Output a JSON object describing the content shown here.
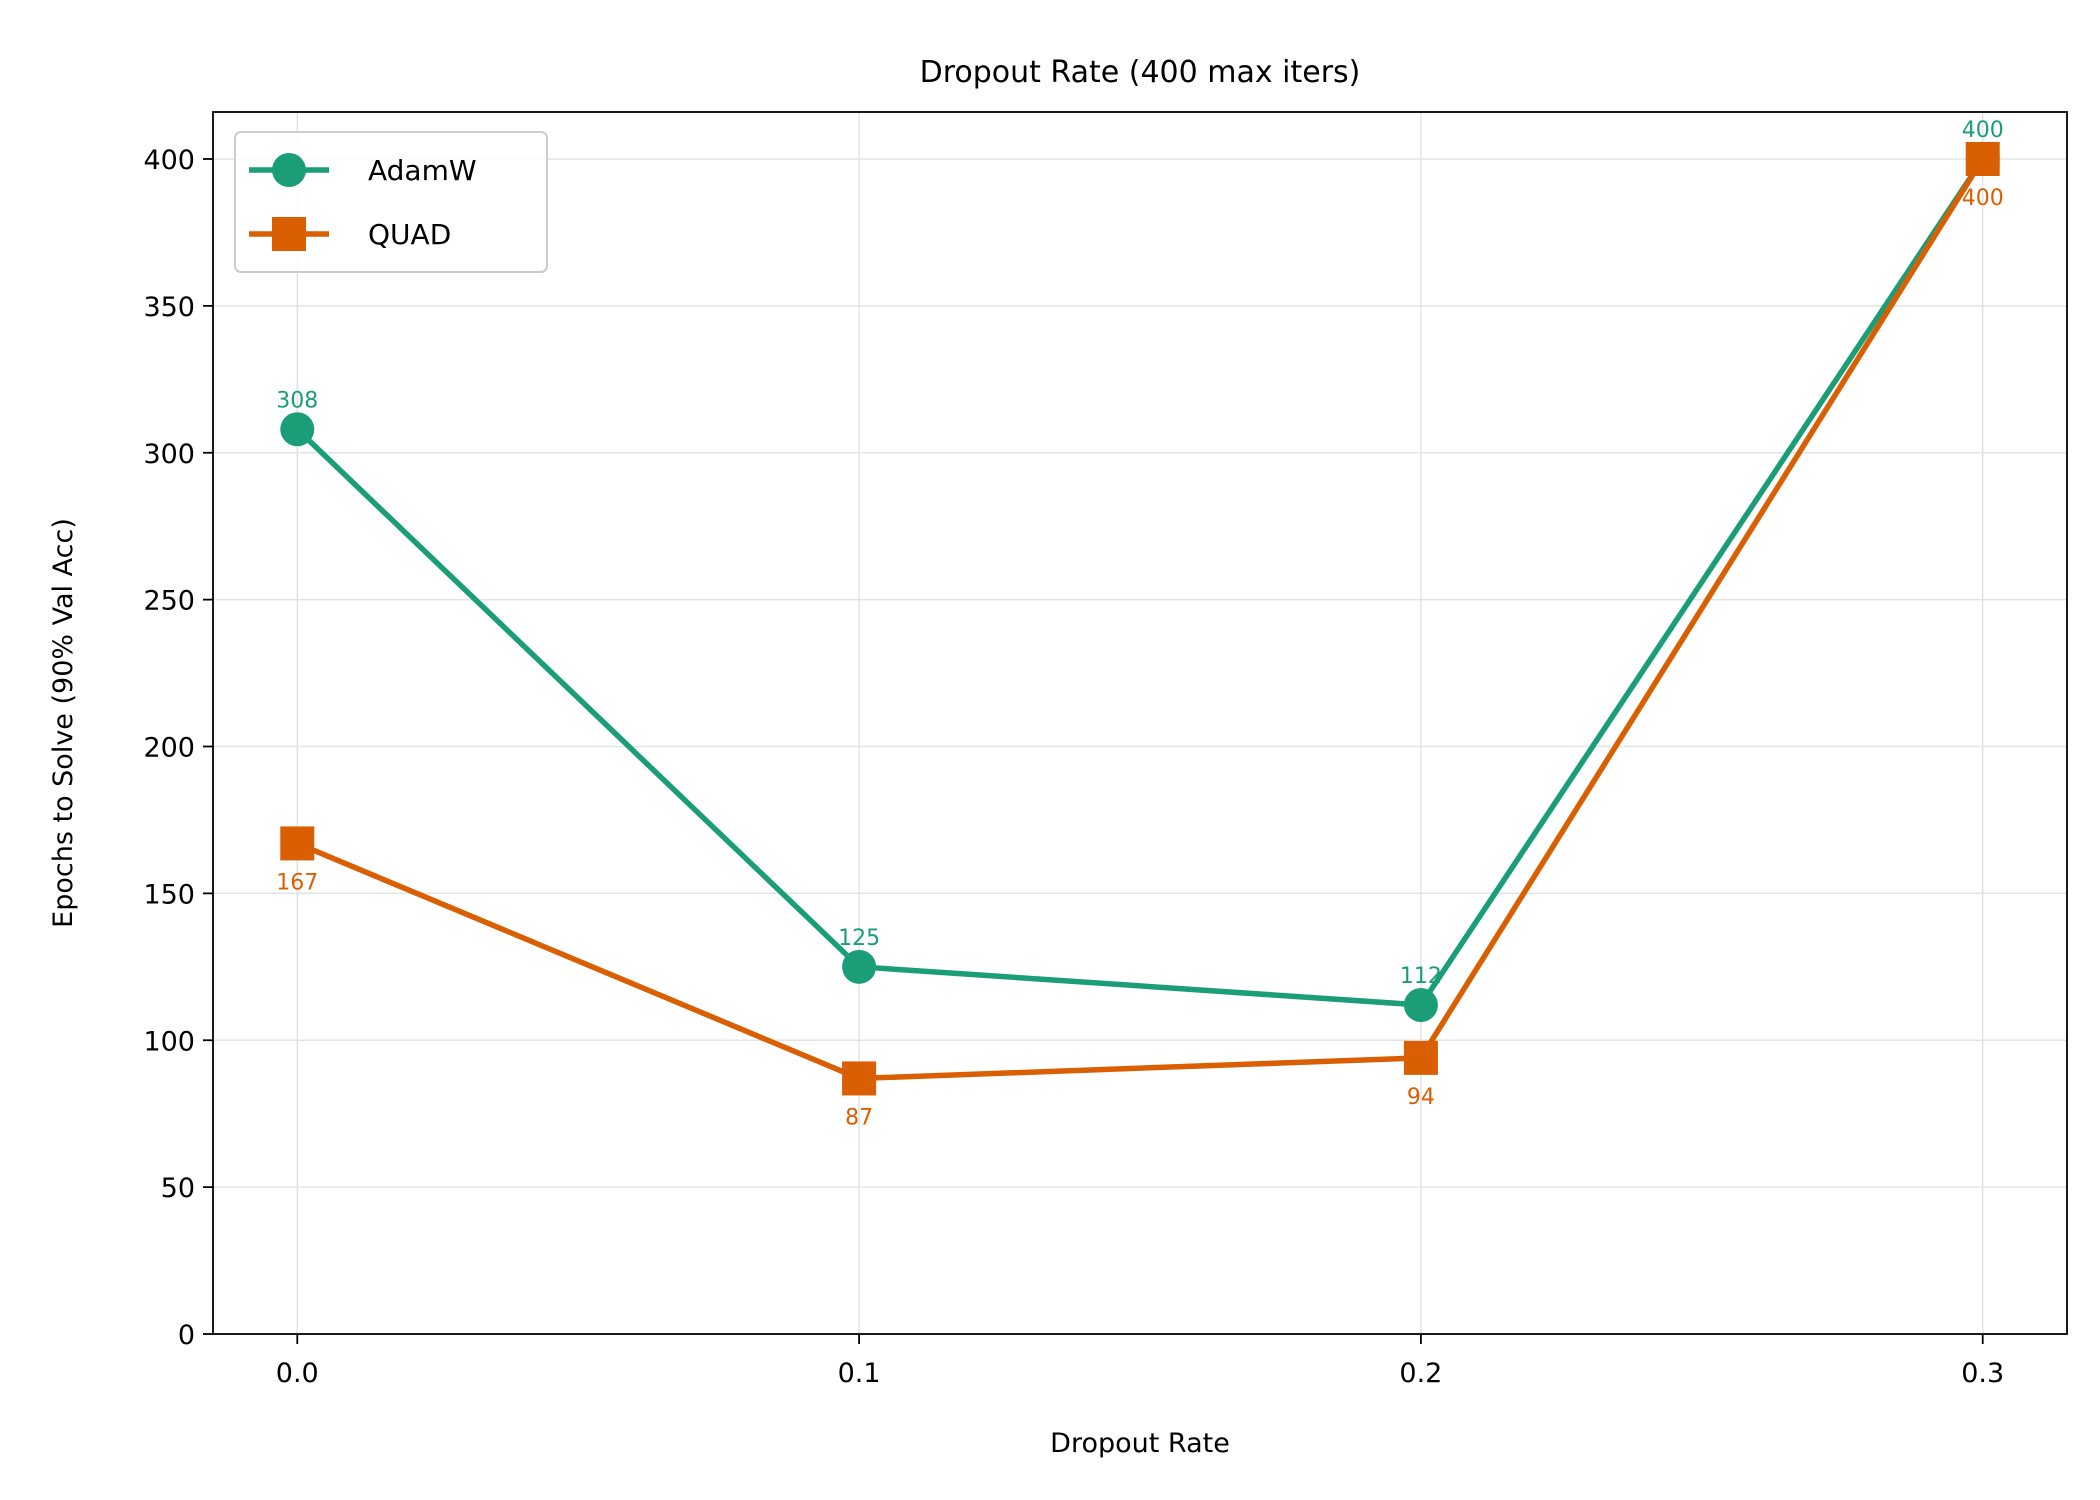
{
  "chart_data": {
    "type": "line",
    "title": "Dropout Rate (400 max iters)",
    "xlabel": "Dropout Rate",
    "ylabel": "Epochs to Solve (90% Val Acc)",
    "x": [
      0.0,
      0.1,
      0.2,
      0.3
    ],
    "x_tick_labels": [
      "0.0",
      "0.1",
      "0.2",
      "0.3"
    ],
    "y_ticks": [
      0,
      50,
      100,
      150,
      200,
      250,
      300,
      350,
      400
    ],
    "y_tick_labels": [
      "0",
      "50",
      "100",
      "150",
      "200",
      "250",
      "300",
      "350",
      "400"
    ],
    "xlim": [
      -0.015,
      0.315
    ],
    "ylim": [
      0,
      416
    ],
    "grid": true,
    "legend_position": "top-left",
    "series": [
      {
        "name": "AdamW",
        "color": "#1b9e77",
        "marker": "circle",
        "label_position": "above",
        "values": [
          308,
          125,
          112,
          400
        ],
        "labels": [
          "308",
          "125",
          "112",
          "400"
        ]
      },
      {
        "name": "QUAD",
        "color": "#d95f02",
        "marker": "square",
        "label_position": "below",
        "values": [
          167,
          87,
          94,
          400
        ],
        "labels": [
          "167",
          "87",
          "94",
          "400"
        ]
      }
    ]
  }
}
